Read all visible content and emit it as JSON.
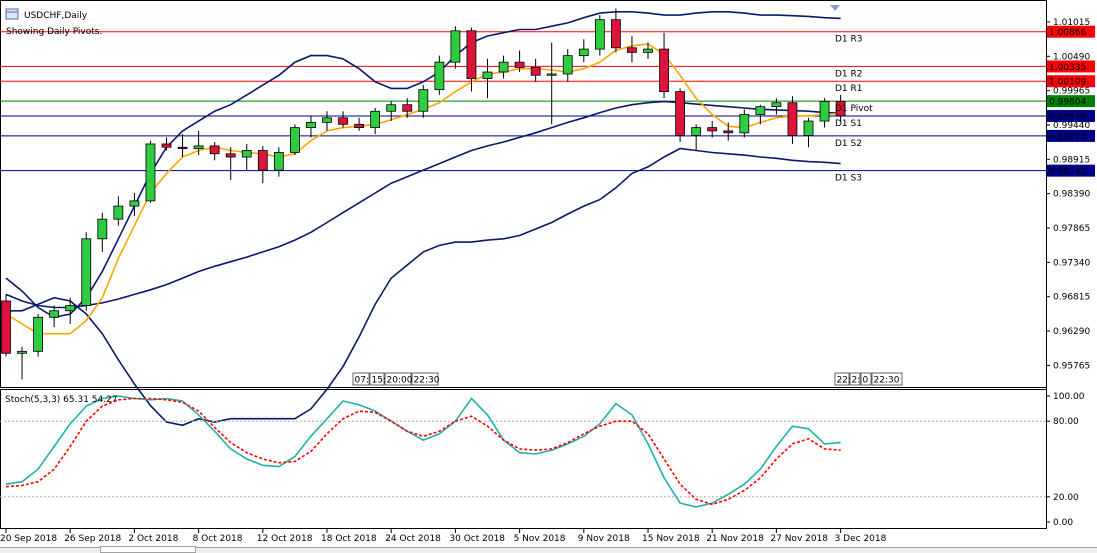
{
  "window": {
    "title": "USDCHF,Daily",
    "subtitle": "Showing Daily Pivots."
  },
  "colors": {
    "bull": "#2ecc40",
    "bear": "#dc143c",
    "bands": "#0a1a6b",
    "ma": "#ffa500",
    "stoch_main": "#20b2aa",
    "stoch_signal": "#ff0000",
    "pivot": "#008000",
    "support": "#00008b",
    "resistance": "#ff0000"
  },
  "chart_data": [
    {
      "type": "candlestick",
      "symbol": "USDCHF",
      "timeframe": "Daily",
      "ylim": [
        0.9545,
        1.0132
      ],
      "y_ticks": [
        "1.01015",
        "1.00490",
        "0.99965",
        "0.99440",
        "0.98915",
        "0.98390",
        "0.97865",
        "0.97340",
        "0.96815",
        "0.96290",
        "0.95765"
      ],
      "x_ticks": [
        "20 Sep 2018",
        "26 Sep 2018",
        "2 Oct 2018",
        "8 Oct 2018",
        "12 Oct 2018",
        "18 Oct 2018",
        "24 Oct 2018",
        "30 Oct 2018",
        "5 Nov 2018",
        "9 Nov 2018",
        "15 Nov 2018",
        "21 Nov 2018",
        "27 Nov 2018",
        "3 Dec 2018"
      ],
      "x_tick_index": [
        0,
        4,
        8,
        12,
        16,
        20,
        24,
        28,
        32,
        36,
        40,
        44,
        48,
        52
      ],
      "candles": [
        {
          "o": 0.9675,
          "h": 0.9685,
          "l": 0.959,
          "c": 0.9595
        },
        {
          "o": 0.9595,
          "h": 0.9605,
          "l": 0.9555,
          "c": 0.9598
        },
        {
          "o": 0.9598,
          "h": 0.9655,
          "l": 0.959,
          "c": 0.965
        },
        {
          "o": 0.965,
          "h": 0.9668,
          "l": 0.9635,
          "c": 0.966
        },
        {
          "o": 0.966,
          "h": 0.968,
          "l": 0.964,
          "c": 0.9668
        },
        {
          "o": 0.9668,
          "h": 0.978,
          "l": 0.966,
          "c": 0.977
        },
        {
          "o": 0.977,
          "h": 0.981,
          "l": 0.975,
          "c": 0.98
        },
        {
          "o": 0.98,
          "h": 0.9835,
          "l": 0.979,
          "c": 0.982
        },
        {
          "o": 0.982,
          "h": 0.984,
          "l": 0.9805,
          "c": 0.9828
        },
        {
          "o": 0.9828,
          "h": 0.992,
          "l": 0.9825,
          "c": 0.9915
        },
        {
          "o": 0.9915,
          "h": 0.9925,
          "l": 0.9905,
          "c": 0.991
        },
        {
          "o": 0.991,
          "h": 0.993,
          "l": 0.9895,
          "c": 0.9908
        },
        {
          "o": 0.9908,
          "h": 0.9935,
          "l": 0.9898,
          "c": 0.9912
        },
        {
          "o": 0.9912,
          "h": 0.9918,
          "l": 0.989,
          "c": 0.99
        },
        {
          "o": 0.99,
          "h": 0.991,
          "l": 0.986,
          "c": 0.9895
        },
        {
          "o": 0.9895,
          "h": 0.9915,
          "l": 0.9875,
          "c": 0.9905
        },
        {
          "o": 0.9905,
          "h": 0.9912,
          "l": 0.9855,
          "c": 0.9875
        },
        {
          "o": 0.9875,
          "h": 0.991,
          "l": 0.9865,
          "c": 0.9902
        },
        {
          "o": 0.9902,
          "h": 0.9945,
          "l": 0.9898,
          "c": 0.994
        },
        {
          "o": 0.994,
          "h": 0.9958,
          "l": 0.9925,
          "c": 0.9948
        },
        {
          "o": 0.9948,
          "h": 0.9965,
          "l": 0.9935,
          "c": 0.9955
        },
        {
          "o": 0.9955,
          "h": 0.9965,
          "l": 0.994,
          "c": 0.9945
        },
        {
          "o": 0.9945,
          "h": 0.9955,
          "l": 0.9935,
          "c": 0.994
        },
        {
          "o": 0.994,
          "h": 0.997,
          "l": 0.993,
          "c": 0.9965
        },
        {
          "o": 0.9965,
          "h": 0.998,
          "l": 0.995,
          "c": 0.9975
        },
        {
          "o": 0.9975,
          "h": 0.9985,
          "l": 0.9955,
          "c": 0.9965
        },
        {
          "o": 0.9965,
          "h": 1.0005,
          "l": 0.9955,
          "c": 0.9998
        },
        {
          "o": 0.9998,
          "h": 1.005,
          "l": 0.999,
          "c": 1.004
        },
        {
          "o": 1.004,
          "h": 1.0095,
          "l": 1.003,
          "c": 1.0088
        },
        {
          "o": 1.0088,
          "h": 1.0093,
          "l": 0.9995,
          "c": 1.0015
        },
        {
          "o": 1.0015,
          "h": 1.0045,
          "l": 0.9985,
          "c": 1.0025
        },
        {
          "o": 1.0025,
          "h": 1.005,
          "l": 1.0015,
          "c": 1.004
        },
        {
          "o": 1.004,
          "h": 1.0058,
          "l": 1.0025,
          "c": 1.0032
        },
        {
          "o": 1.0032,
          "h": 1.0045,
          "l": 1.001,
          "c": 1.002
        },
        {
          "o": 1.002,
          "h": 1.007,
          "l": 0.9945,
          "c": 1.0022
        },
        {
          "o": 1.0022,
          "h": 1.006,
          "l": 1.001,
          "c": 1.005
        },
        {
          "o": 1.005,
          "h": 1.0075,
          "l": 1.004,
          "c": 1.006
        },
        {
          "o": 1.006,
          "h": 1.0112,
          "l": 1.005,
          "c": 1.0105
        },
        {
          "o": 1.0105,
          "h": 1.0122,
          "l": 1.0055,
          "c": 1.0062
        },
        {
          "o": 1.0062,
          "h": 1.008,
          "l": 1.004,
          "c": 1.0055
        },
        {
          "o": 1.0055,
          "h": 1.007,
          "l": 1.0045,
          "c": 1.006
        },
        {
          "o": 1.006,
          "h": 1.0085,
          "l": 0.9985,
          "c": 0.9995
        },
        {
          "o": 0.9995,
          "h": 1.0,
          "l": 0.9918,
          "c": 0.9928
        },
        {
          "o": 0.9928,
          "h": 0.9945,
          "l": 0.9905,
          "c": 0.994
        },
        {
          "o": 0.994,
          "h": 0.995,
          "l": 0.9925,
          "c": 0.9935
        },
        {
          "o": 0.9935,
          "h": 0.9948,
          "l": 0.992,
          "c": 0.9932
        },
        {
          "o": 0.9932,
          "h": 0.9968,
          "l": 0.9925,
          "c": 0.996
        },
        {
          "o": 0.996,
          "h": 0.9975,
          "l": 0.9945,
          "c": 0.9972
        },
        {
          "o": 0.9972,
          "h": 0.9985,
          "l": 0.996,
          "c": 0.9978
        },
        {
          "o": 0.9978,
          "h": 0.9988,
          "l": 0.9915,
          "c": 0.9928
        },
        {
          "o": 0.9928,
          "h": 0.9955,
          "l": 0.991,
          "c": 0.995
        },
        {
          "o": 0.995,
          "h": 0.9985,
          "l": 0.994,
          "c": 0.998
        },
        {
          "o": 0.998,
          "h": 0.999,
          "l": 0.995,
          "c": 0.9958
        }
      ],
      "bb_upper": [
        0.971,
        0.969,
        0.9665,
        0.965,
        0.9655,
        0.968,
        0.972,
        0.977,
        0.982,
        0.987,
        0.991,
        0.9935,
        0.995,
        0.9965,
        0.9975,
        0.999,
        1.0005,
        1.002,
        1.004,
        1.005,
        1.005,
        1.0045,
        1.003,
        1.001,
        1.0,
        1.0,
        1.001,
        1.0025,
        1.005,
        1.007,
        1.008,
        1.0085,
        1.009,
        1.009,
        1.0095,
        1.01,
        1.0108,
        1.0115,
        1.0117,
        1.0117,
        1.0115,
        1.0112,
        1.0112,
        1.0115,
        1.0117,
        1.0117,
        1.0115,
        1.0112,
        1.0112,
        1.0111,
        1.011,
        1.0108,
        1.0107
      ],
      "bb_mid": [
        0.9685,
        0.9675,
        0.9668,
        0.9665,
        0.9665,
        0.9668,
        0.9672,
        0.9678,
        0.9685,
        0.9692,
        0.97,
        0.971,
        0.972,
        0.9728,
        0.9735,
        0.9742,
        0.975,
        0.9758,
        0.9768,
        0.978,
        0.9795,
        0.981,
        0.9825,
        0.984,
        0.9855,
        0.9865,
        0.9875,
        0.9885,
        0.9895,
        0.9905,
        0.9912,
        0.9918,
        0.9925,
        0.9932,
        0.994,
        0.9948,
        0.9955,
        0.9963,
        0.997,
        0.9975,
        0.9978,
        0.998,
        0.9978,
        0.9976,
        0.9974,
        0.9972,
        0.997,
        0.9968,
        0.9967,
        0.9966,
        0.9965,
        0.9963,
        0.9962
      ],
      "bb_lower": [
        0.966,
        0.966,
        0.967,
        0.968,
        0.9675,
        0.9655,
        0.9625,
        0.9585,
        0.9548,
        0.9515,
        0.949,
        0.9485,
        0.9495,
        0.949,
        0.9495,
        0.9495,
        0.9495,
        0.9495,
        0.9495,
        0.951,
        0.954,
        0.9575,
        0.962,
        0.967,
        0.971,
        0.973,
        0.975,
        0.976,
        0.9765,
        0.9765,
        0.9768,
        0.977,
        0.9775,
        0.9785,
        0.9795,
        0.9808,
        0.982,
        0.983,
        0.9848,
        0.987,
        0.988,
        0.9895,
        0.9908,
        0.9905,
        0.9902,
        0.99,
        0.9898,
        0.9895,
        0.9893,
        0.989,
        0.9888,
        0.9887,
        0.9885
      ],
      "ma": [
        0.9655,
        0.964,
        0.9625,
        0.9625,
        0.9625,
        0.9645,
        0.968,
        0.974,
        0.979,
        0.984,
        0.987,
        0.9895,
        0.9905,
        0.991,
        0.9905,
        0.9902,
        0.99,
        0.9895,
        0.99,
        0.992,
        0.9935,
        0.994,
        0.9942,
        0.9945,
        0.9952,
        0.996,
        0.9968,
        0.9978,
        0.9995,
        1.001,
        1.0022,
        1.0025,
        1.003,
        1.003,
        1.0028,
        1.0025,
        1.003,
        1.004,
        1.0058,
        1.0065,
        1.0068,
        1.0052,
        1.002,
        0.9985,
        0.996,
        0.9942,
        0.994,
        0.9948,
        0.9955,
        0.9958,
        0.9958,
        0.996,
        0.9962
      ],
      "pivots": [
        {
          "name": "D1 R3",
          "value": 1.00866,
          "label": "1.00866",
          "kind": "resistance"
        },
        {
          "name": "D1 R2",
          "value": 1.00335,
          "label": "1.00335",
          "kind": "resistance"
        },
        {
          "name": "D1 R1",
          "value": 1.00109,
          "label": "1.00109",
          "kind": "resistance"
        },
        {
          "name": "D1 Pivot",
          "value": 0.99804,
          "label": "0.99804",
          "kind": "pivot"
        },
        {
          "name": "D1 S1",
          "value": 0.99578,
          "label": "0.99578",
          "kind": "support"
        },
        {
          "name": "D1 S2",
          "value": 0.99273,
          "label": "0.99273",
          "kind": "support"
        },
        {
          "name": "D1 S3",
          "value": 0.98742,
          "label": "0.98742",
          "kind": "support"
        }
      ],
      "time_labels_left": [
        "07:",
        "15:",
        "20:00",
        "22:30"
      ],
      "time_labels_right": [
        "22:0",
        "2:",
        "0",
        "22:30"
      ]
    },
    {
      "type": "line",
      "name": "Stoch(5,3,3) 65.31 54.27",
      "ylim": [
        0,
        100
      ],
      "y_ticks": [
        {
          "v": 100,
          "label": "100.00"
        },
        {
          "v": 80,
          "label": "80.00"
        },
        {
          "v": 20,
          "label": "20.00"
        },
        {
          "v": 0,
          "label": "0.00"
        }
      ],
      "levels": [
        80,
        20
      ],
      "main": [
        30,
        32,
        42,
        60,
        78,
        92,
        98,
        100,
        98,
        97,
        98,
        96,
        85,
        72,
        58,
        50,
        45,
        44,
        52,
        68,
        82,
        96,
        93,
        88,
        80,
        72,
        65,
        70,
        80,
        98,
        85,
        65,
        55,
        54,
        57,
        62,
        68,
        78,
        94,
        85,
        62,
        35,
        15,
        12,
        15,
        22,
        30,
        42,
        60,
        76,
        74,
        62,
        63
      ],
      "signal": [
        28,
        29,
        32,
        42,
        60,
        80,
        92,
        97,
        98,
        98,
        97,
        95,
        88,
        75,
        63,
        55,
        50,
        47,
        48,
        56,
        70,
        82,
        88,
        87,
        80,
        72,
        68,
        72,
        80,
        84,
        76,
        65,
        58,
        57,
        58,
        63,
        70,
        76,
        80,
        80,
        70,
        50,
        30,
        18,
        14,
        18,
        25,
        35,
        50,
        62,
        66,
        58,
        57
      ]
    }
  ]
}
